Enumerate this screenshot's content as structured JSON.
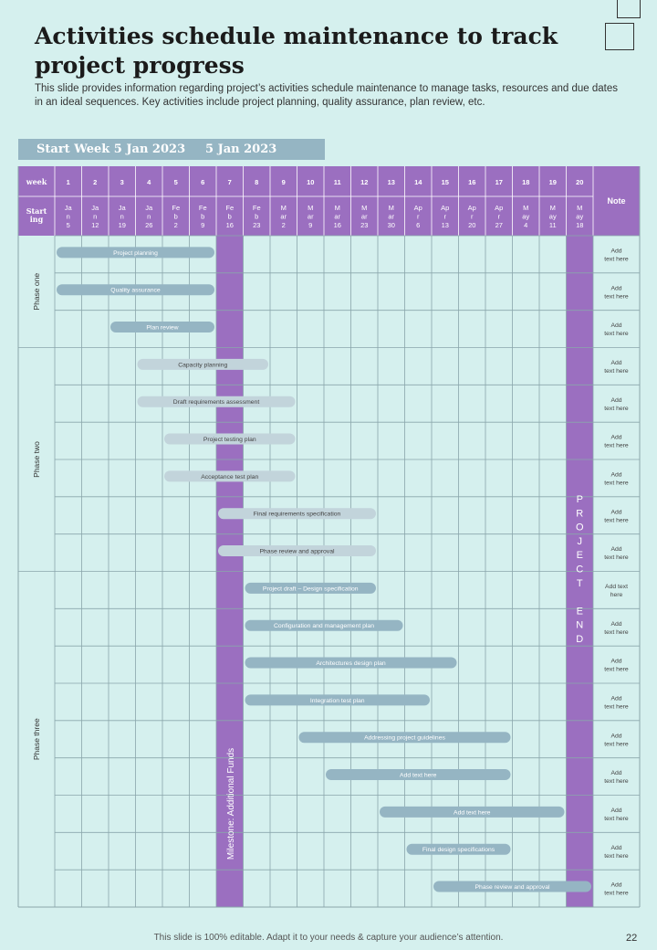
{
  "title": "Activities schedule maintenance to track project progress",
  "subtitle": "This slide provides information regarding project’s activities schedule maintenance to manage tasks, resources and due dates in an ideal sequences. Key activities include project planning, quality assurance, plan review, etc.",
  "banner": {
    "label": "Start Week 5 Jan 2023",
    "date": "5 Jan 2023"
  },
  "header": {
    "week_label": "week",
    "starting_label": [
      "Start",
      "ing"
    ],
    "note_label": "Note"
  },
  "weeks": [
    {
      "n": "1",
      "d": [
        "Ja",
        "n",
        "5"
      ]
    },
    {
      "n": "2",
      "d": [
        "Ja",
        "n",
        "12"
      ]
    },
    {
      "n": "3",
      "d": [
        "Ja",
        "n",
        "19"
      ]
    },
    {
      "n": "4",
      "d": [
        "Ja",
        "n",
        "26"
      ]
    },
    {
      "n": "5",
      "d": [
        "Fe",
        "b",
        "2"
      ]
    },
    {
      "n": "6",
      "d": [
        "Fe",
        "b",
        "9"
      ]
    },
    {
      "n": "7",
      "d": [
        "Fe",
        "b",
        "16"
      ]
    },
    {
      "n": "8",
      "d": [
        "Fe",
        "b",
        "23"
      ]
    },
    {
      "n": "9",
      "d": [
        "M",
        "ar",
        "2"
      ]
    },
    {
      "n": "10",
      "d": [
        "M",
        "ar",
        "9"
      ]
    },
    {
      "n": "11",
      "d": [
        "M",
        "ar",
        "16"
      ]
    },
    {
      "n": "12",
      "d": [
        "M",
        "ar",
        "23"
      ]
    },
    {
      "n": "13",
      "d": [
        "M",
        "ar",
        "30"
      ]
    },
    {
      "n": "14",
      "d": [
        "Ap",
        "r",
        "6"
      ]
    },
    {
      "n": "15",
      "d": [
        "Ap",
        "r",
        "13"
      ]
    },
    {
      "n": "16",
      "d": [
        "Ap",
        "r",
        "20"
      ]
    },
    {
      "n": "17",
      "d": [
        "Ap",
        "r",
        "27"
      ]
    },
    {
      "n": "18",
      "d": [
        "M",
        "ay",
        "4"
      ]
    },
    {
      "n": "19",
      "d": [
        "M",
        "ay",
        "11"
      ]
    },
    {
      "n": "20",
      "d": [
        "M",
        "ay",
        "18"
      ]
    }
  ],
  "phases": [
    {
      "label": "Phase one",
      "rows": 3
    },
    {
      "label": "Phase two",
      "rows": 6
    },
    {
      "label": "Phase three",
      "rows": 9
    }
  ],
  "rows": [
    {
      "task": "Project planning",
      "start": 1,
      "end": 6,
      "style": "dark",
      "note": [
        "Add",
        "text here"
      ]
    },
    {
      "task": "Quality assurance",
      "start": 1,
      "end": 6,
      "style": "dark",
      "note": [
        "Add",
        "text here"
      ]
    },
    {
      "task": "Plan review",
      "start": 3,
      "end": 6,
      "style": "dark",
      "note": [
        "Add",
        "text here"
      ]
    },
    {
      "task": "Capacity planning",
      "start": 4,
      "end": 8,
      "style": "light",
      "note": [
        "Add",
        "text here"
      ]
    },
    {
      "task": "Draft requirements  assessment",
      "start": 4,
      "end": 9,
      "style": "light",
      "note": [
        "Add",
        "text here"
      ]
    },
    {
      "task": "Project testing plan",
      "start": 5,
      "end": 9,
      "style": "light",
      "note": [
        "Add",
        "text here"
      ]
    },
    {
      "task": "Acceptance  test plan",
      "start": 5,
      "end": 9,
      "style": "light",
      "note": [
        "Add",
        "text here"
      ]
    },
    {
      "task": "Final requirements  specification",
      "start": 7,
      "end": 12,
      "style": "light",
      "note": [
        "Add",
        "text here"
      ]
    },
    {
      "task": "Phase  review and  approval",
      "start": 7,
      "end": 12,
      "style": "light",
      "note": [
        "Add",
        "text here"
      ]
    },
    {
      "task": "Project  draft – Design specification",
      "start": 8,
      "end": 12,
      "style": "dark",
      "note": [
        "Add text",
        "here"
      ]
    },
    {
      "task": "Configuration  and  management  plan",
      "start": 8,
      "end": 13,
      "style": "dark",
      "note": [
        "Add",
        "text here"
      ]
    },
    {
      "task": "Architectures  design  plan",
      "start": 8,
      "end": 15,
      "style": "dark",
      "note": [
        "Add",
        "text here"
      ]
    },
    {
      "task": "Integration  test plan",
      "start": 8,
      "end": 14,
      "style": "dark",
      "note": [
        "Add",
        "text here"
      ]
    },
    {
      "task": "Addressing  project guidelines",
      "start": 10,
      "end": 17,
      "style": "dark",
      "note": [
        "Add",
        "text here"
      ]
    },
    {
      "task": "Add text here",
      "start": 11,
      "end": 17,
      "style": "dark",
      "note": [
        "Add",
        "text here"
      ]
    },
    {
      "task": "Add text here",
      "start": 13,
      "end": 19,
      "style": "dark",
      "note": [
        "Add",
        "text here"
      ]
    },
    {
      "task": "Final design  specifications",
      "start": 14,
      "end": 17,
      "style": "dark",
      "note": [
        "Add",
        "text here"
      ]
    },
    {
      "task": "Phase  review  and  approval",
      "start": 15,
      "end": 20,
      "style": "dark",
      "note": [
        "Add",
        "text here"
      ]
    }
  ],
  "milestone": {
    "week": 7,
    "label": "Milestone: Additional Funds"
  },
  "project_end": {
    "week": 20,
    "letters": [
      "P",
      "R",
      "O",
      "J",
      "E",
      "C",
      "T",
      "",
      "E",
      "N",
      "D"
    ]
  },
  "footer": "This slide is 100% editable.  Adapt it to your needs & capture your audience’s attention.",
  "page_number": "22",
  "colors": {
    "background": "#d5f0ee",
    "header_purple": "#9b6fc0",
    "grid_line": "#8aa6ab",
    "bar_dark": "#95b5c3",
    "bar_light": "#c2d4db",
    "banner": "#95b5c3"
  }
}
